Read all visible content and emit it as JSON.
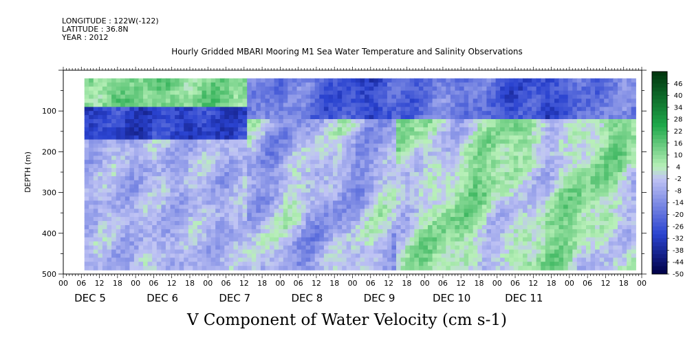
{
  "header": {
    "longitude": "LONGITUDE : 122W(-122)",
    "latitude": "LATITUDE : 36.8N",
    "year": "YEAR : 2012"
  },
  "title": "Hourly Gridded MBARI Mooring M1 Sea Water Temperature and Salinity Observations",
  "bottom_title": "V Component of Water Velocity (cm s-1)",
  "chart_data": {
    "type": "heatmap",
    "ylabel": "DEPTH (m)",
    "ylim": [
      500,
      0
    ],
    "y_ticks": [
      100,
      200,
      300,
      400,
      500
    ],
    "data_depth_range": [
      20,
      490
    ],
    "x_hour_ticks": [
      "00",
      "06",
      "12",
      "18",
      "00",
      "06",
      "12",
      "18",
      "00",
      "06",
      "12",
      "18",
      "00",
      "06",
      "12",
      "18",
      "00",
      "06",
      "12",
      "18",
      "00",
      "06",
      "12",
      "18",
      "00",
      "06",
      "12",
      "18",
      "00",
      "06",
      "12",
      "18",
      "00"
    ],
    "x_date_labels": [
      "DEC 5",
      "DEC 6",
      "DEC 7",
      "DEC 8",
      "DEC 9",
      "DEC 10",
      "DEC 11"
    ],
    "data_start_hour": 7,
    "data_end_hour": 190,
    "colorbar": {
      "levels": [
        46,
        40,
        34,
        28,
        22,
        16,
        10,
        4,
        -2,
        -8,
        -14,
        -20,
        -26,
        -32,
        -38,
        -44,
        -50
      ],
      "range": [
        -50,
        52
      ],
      "colors": {
        "strong_positive": "#00330d",
        "positive": "#1ea84a",
        "weak_positive": "#b8f0b8",
        "weak_negative": "#c0c4f4",
        "negative": "#2a43d0",
        "strong_negative": "#000045"
      }
    },
    "features": [
      {
        "depth": [
          20,
          90
        ],
        "value": 12,
        "hours": [
          7,
          60
        ]
      },
      {
        "depth": [
          90,
          170
        ],
        "value": -30,
        "hours": [
          7,
          60
        ]
      },
      {
        "depth": [
          20,
          120
        ],
        "value": -22,
        "hours": [
          60,
          190
        ]
      },
      {
        "depth": [
          150,
          490
        ],
        "value": 10,
        "hours": [
          110,
          190
        ]
      },
      {
        "depth": [
          150,
          490
        ],
        "value": -6,
        "hours": [
          7,
          110
        ]
      }
    ]
  }
}
